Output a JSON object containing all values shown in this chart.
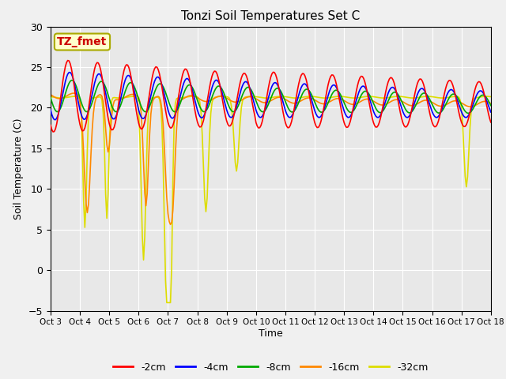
{
  "title": "Tonzi Soil Temperatures Set C",
  "xlabel": "Time",
  "ylabel": "Soil Temperature (C)",
  "ylim": [
    -5,
    30
  ],
  "xlim": [
    0,
    360
  ],
  "background_color": "#f0f0f0",
  "plot_bg_color": "#e8e8e8",
  "grid_color": "#ffffff",
  "annotation_text": "TZ_fmet",
  "annotation_bg": "#ffffcc",
  "annotation_border": "#aaaa00",
  "annotation_text_color": "#cc0000",
  "colors": {
    "-2cm": "#ff0000",
    "-4cm": "#0000ff",
    "-8cm": "#00aa00",
    "-16cm": "#ff8800",
    "-32cm": "#dddd00"
  },
  "tick_labels": [
    "Oct 3",
    "Oct 4",
    "Oct 5",
    "Oct 6",
    "Oct 7",
    "Oct 8",
    "Oct 9",
    "Oct 10",
    "Oct 11",
    "Oct 12",
    "Oct 13",
    "Oct 14",
    "Oct 15",
    "Oct 16",
    "Oct 17",
    "Oct 18"
  ],
  "tick_positions": [
    0,
    24,
    48,
    72,
    96,
    120,
    144,
    168,
    192,
    216,
    240,
    264,
    288,
    312,
    336,
    360
  ],
  "yticks": [
    -5,
    0,
    5,
    10,
    15,
    20,
    25,
    30
  ],
  "linewidth": 1.2,
  "figsize": [
    6.4,
    4.8
  ],
  "dpi": 100
}
